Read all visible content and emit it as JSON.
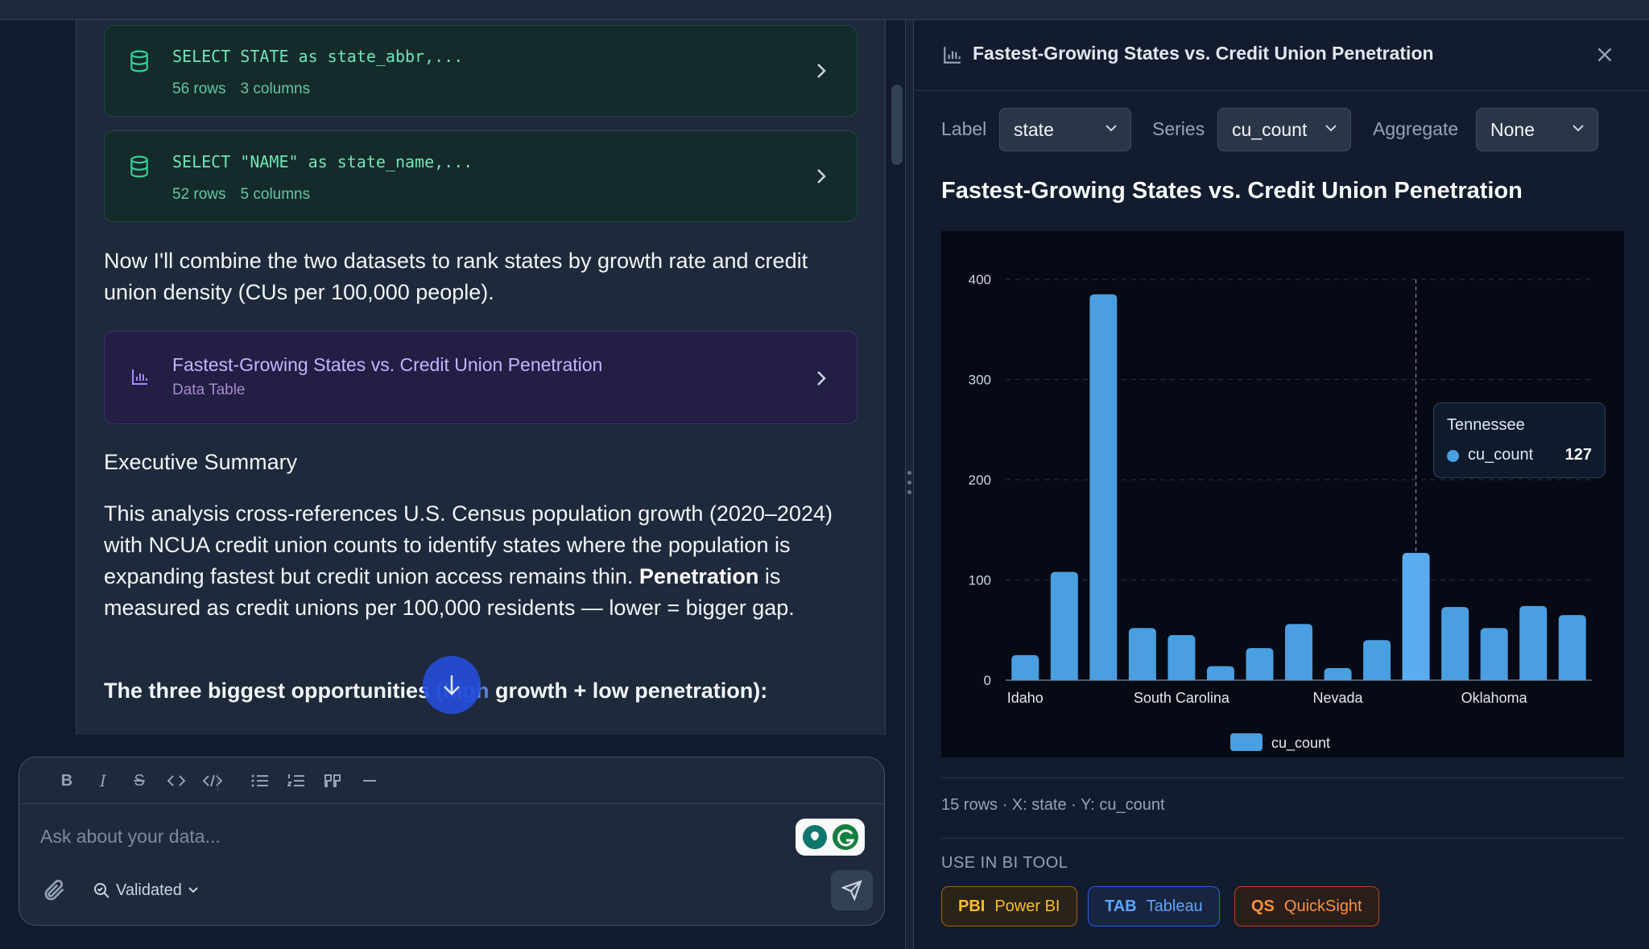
{
  "chat": {
    "sql_cards": [
      {
        "query": "SELECT STATE as state_abbr,...",
        "rows": "56 rows",
        "columns": "3 columns"
      },
      {
        "query": "SELECT \"NAME\" as state_name,...",
        "rows": "52 rows",
        "columns": "5 columns"
      }
    ],
    "intro_text": "Now I'll combine the two datasets to rank states by growth rate and credit union density (CUs per 100,000 people).",
    "chart_card": {
      "title": "Fastest-Growing States vs. Credit Union Penetration",
      "subtitle": "Data Table"
    },
    "summary_heading": "Executive Summary",
    "summary_p1": "This analysis cross-references U.S. Census population growth (2020–2024) with NCUA credit union counts to identify states where the population is expanding fastest but credit union access remains thin.",
    "summary_p2_bold": "Penetration",
    "summary_p2_rest": " is measured as credit unions per 100,000 residents — lower = bigger gap.",
    "opportunities_before": "The three biggest opportunities ",
    "opportunities_obscured": "(high",
    "opportunities_after": " growth + low penetration):"
  },
  "composer": {
    "placeholder": "Ask about your data...",
    "mode_label": "Validated",
    "toolbar_icons": [
      "bold-icon",
      "italic-icon",
      "strikethrough-icon",
      "inline-code-icon",
      "code-block-icon",
      "bullet-list-icon",
      "numbered-list-icon",
      "quote-icon",
      "horizontal-rule-icon"
    ]
  },
  "panel": {
    "title": "Fastest-Growing States vs. Credit Union Penetration",
    "controls": {
      "label_text": "Label",
      "label_value": "state",
      "series_text": "Series",
      "series_value": "cu_count",
      "aggregate_text": "Aggregate",
      "aggregate_value": "None"
    },
    "chart_title": "Fastest-Growing States vs. Credit Union Penetration",
    "tooltip": {
      "title": "Tennessee",
      "series": "cu_count",
      "value": "127"
    },
    "footer_meta": "15 rows · X: state · Y: cu_count",
    "bi_label": "USE IN BI TOOL",
    "bi_tools": [
      {
        "abbr": "PBI",
        "name": "Power BI",
        "color": "#fbbf24",
        "border": "#a16207",
        "bg": "#2a2418"
      },
      {
        "abbr": "TAB",
        "name": "Tableau",
        "color": "#60a5fa",
        "border": "#2563eb",
        "bg": "#172540"
      },
      {
        "abbr": "QS",
        "name": "QuickSight",
        "color": "#fb923c",
        "border": "#c2410c",
        "bg": "#2c1e1a"
      }
    ]
  },
  "chart_data": {
    "type": "bar",
    "title": "Fastest-Growing States vs. Credit Union Penetration",
    "categories": [
      "Idaho",
      "",
      "",
      "",
      "South Carolina",
      "",
      "",
      "",
      "Nevada",
      "",
      "",
      "",
      "Oklahoma",
      "",
      ""
    ],
    "series": [
      {
        "name": "cu_count",
        "values": [
          25,
          108,
          385,
          52,
          45,
          14,
          32,
          56,
          12,
          40,
          127,
          73,
          52,
          74,
          65
        ],
        "color": "#4a9fe0",
        "highlight_color": "#5aaef0"
      }
    ],
    "highlight_index": 10,
    "xlabel": "",
    "ylabel": "",
    "ylim": [
      0,
      400
    ],
    "yticks": [
      0,
      100,
      200,
      300,
      400
    ],
    "grid": true,
    "legend": "bottom-center"
  }
}
